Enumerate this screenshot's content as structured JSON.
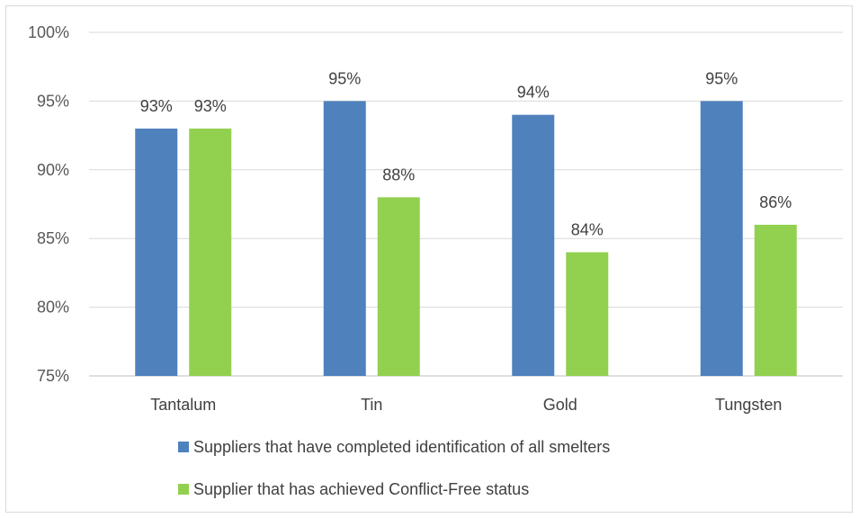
{
  "chart_data": {
    "type": "bar",
    "title": "",
    "xlabel": "",
    "ylabel": "",
    "categories": [
      "Tantalum",
      "Tin",
      "Gold",
      "Tungsten"
    ],
    "series": [
      {
        "name": "Suppliers that have completed identification of all smelters",
        "values": [
          93,
          95,
          94,
          95
        ],
        "labels": [
          "93%",
          "95%",
          "94%",
          "95%"
        ],
        "color": "#4f81bd"
      },
      {
        "name": "Supplier that has achieved Conflict-Free status",
        "values": [
          93,
          88,
          84,
          86
        ],
        "labels": [
          "93%",
          "88%",
          "84%",
          "86%"
        ],
        "color": "#92d050"
      }
    ],
    "ylim": [
      75,
      100
    ],
    "yticks": [
      75,
      80,
      85,
      90,
      95,
      100
    ],
    "ytick_labels": [
      "75%",
      "80%",
      "85%",
      "90%",
      "95%",
      "100%"
    ],
    "grid": true,
    "legend_position": "bottom"
  }
}
